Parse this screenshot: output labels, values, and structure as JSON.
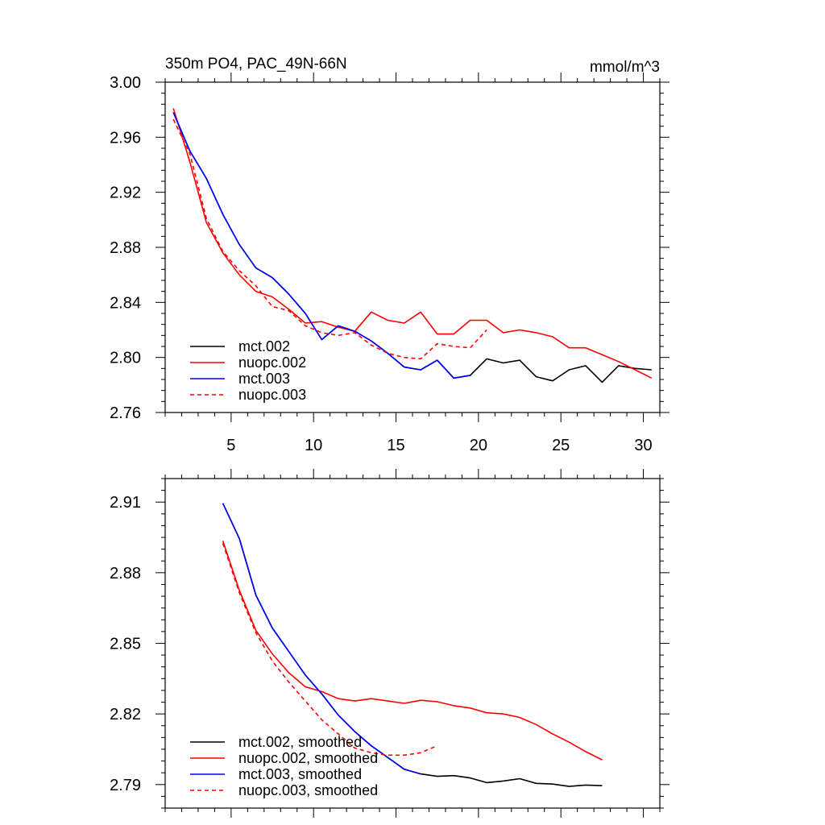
{
  "chart_data": [
    {
      "type": "line",
      "title": "350m PO4, PAC_49N-66N",
      "units": "mmol/m^3",
      "xlabel": "",
      "ylabel": "",
      "xlim": [
        1,
        31
      ],
      "ylim": [
        2.76,
        3.0
      ],
      "xticks": [
        5,
        10,
        15,
        20,
        25,
        30
      ],
      "yticks": [
        2.76,
        2.8,
        2.84,
        2.88,
        2.92,
        2.96,
        3.0
      ],
      "ytick_labels": [
        "2.76",
        "2.80",
        "2.84",
        "2.88",
        "2.92",
        "2.96",
        "3.00"
      ],
      "legend_position": "bottom-left",
      "series": [
        {
          "name": "mct.002",
          "color": "#000000",
          "dash": "solid",
          "x": [
            1.5,
            2.5,
            3.5,
            4.5,
            5.5,
            6.5,
            7.5,
            8.5,
            9.5,
            10.5,
            11.5,
            12.5,
            13.5,
            14.5,
            15.5,
            16.5,
            17.5,
            18.5,
            19.5,
            20.5,
            21.5,
            22.5,
            23.5,
            24.5,
            25.5,
            26.5,
            27.5,
            28.5,
            29.5,
            30.5
          ],
          "y": [
            2.978,
            2.95,
            2.93,
            2.904,
            2.882,
            2.865,
            2.858,
            2.846,
            2.832,
            2.813,
            2.823,
            2.819,
            2.812,
            2.803,
            2.793,
            2.791,
            2.798,
            2.785,
            2.787,
            2.799,
            2.796,
            2.798,
            2.786,
            2.783,
            2.791,
            2.794,
            2.782,
            2.794,
            2.792,
            2.791
          ]
        },
        {
          "name": "nuopc.002",
          "color": "#ff0000",
          "dash": "solid",
          "x": [
            1.5,
            2.5,
            3.5,
            4.5,
            5.5,
            6.5,
            7.5,
            8.5,
            9.5,
            10.5,
            11.5,
            12.5,
            13.5,
            14.5,
            15.5,
            16.5,
            17.5,
            18.5,
            19.5,
            20.5,
            21.5,
            22.5,
            23.5,
            24.5,
            25.5,
            26.5,
            27.5,
            28.5,
            29.5,
            30.5
          ],
          "y": [
            2.981,
            2.942,
            2.898,
            2.876,
            2.86,
            2.848,
            2.844,
            2.835,
            2.825,
            2.826,
            2.822,
            2.819,
            2.833,
            2.827,
            2.825,
            2.833,
            2.817,
            2.817,
            2.827,
            2.827,
            2.818,
            2.82,
            2.818,
            2.815,
            2.807,
            2.807,
            2.802,
            2.797,
            2.791,
            2.785
          ]
        },
        {
          "name": "mct.003",
          "color": "#0000ff",
          "dash": "solid",
          "x": [
            1.5,
            2.5,
            3.5,
            4.5,
            5.5,
            6.5,
            7.5,
            8.5,
            9.5,
            10.5,
            11.5,
            12.5,
            13.5,
            14.5,
            15.5,
            16.5,
            17.5,
            18.5,
            19.5
          ],
          "y": [
            2.978,
            2.95,
            2.93,
            2.904,
            2.882,
            2.865,
            2.858,
            2.846,
            2.832,
            2.813,
            2.823,
            2.819,
            2.812,
            2.803,
            2.793,
            2.791,
            2.798,
            2.785,
            2.787
          ]
        },
        {
          "name": "nuopc.003",
          "color": "#ff0000",
          "dash": "dashed",
          "x": [
            1.5,
            2.5,
            3.5,
            4.5,
            5.5,
            6.5,
            7.5,
            8.5,
            9.5,
            10.5,
            11.5,
            12.5,
            13.5,
            14.5,
            15.5,
            16.5,
            17.5,
            18.5,
            19.5,
            20.5
          ],
          "y": [
            2.973,
            2.948,
            2.901,
            2.877,
            2.863,
            2.852,
            2.837,
            2.834,
            2.823,
            2.818,
            2.816,
            2.818,
            2.809,
            2.803,
            2.8,
            2.799,
            2.81,
            2.808,
            2.807,
            2.82
          ]
        }
      ]
    },
    {
      "type": "line",
      "title": "",
      "xlabel": "",
      "ylabel": "",
      "xlim": [
        1,
        31
      ],
      "ylim": [
        2.78,
        2.92
      ],
      "xticks": [
        5,
        10,
        15,
        20,
        25,
        30
      ],
      "yticks": [
        2.79,
        2.82,
        2.85,
        2.88,
        2.91
      ],
      "ytick_labels": [
        "2.79",
        "2.82",
        "2.85",
        "2.88",
        "2.91"
      ],
      "legend_position": "bottom-left",
      "series": [
        {
          "name": "mct.002, smoothed",
          "color": "#000000",
          "dash": "solid",
          "x": [
            4.5,
            5.5,
            6.5,
            7.5,
            8.5,
            9.5,
            10.5,
            11.5,
            12.5,
            13.5,
            14.5,
            15.5,
            16.5,
            17.5,
            18.5,
            19.5,
            20.5,
            21.5,
            22.5,
            23.5,
            24.5,
            25.5,
            26.5,
            27.5
          ],
          "y": [
            2.9095,
            2.8945,
            2.8705,
            2.8565,
            2.8465,
            2.8365,
            2.8285,
            2.8195,
            2.8125,
            2.8065,
            2.8015,
            2.7965,
            2.7945,
            2.7935,
            2.7938,
            2.7928,
            2.7908,
            2.7915,
            2.7925,
            2.7905,
            2.7902,
            2.7892,
            2.7898,
            2.7895
          ]
        },
        {
          "name": "nuopc.002, smoothed",
          "color": "#ff0000",
          "dash": "solid",
          "x": [
            4.5,
            5.5,
            6.5,
            7.5,
            8.5,
            9.5,
            10.5,
            11.5,
            12.5,
            13.5,
            14.5,
            15.5,
            16.5,
            17.5,
            18.5,
            19.5,
            20.5,
            21.5,
            22.5,
            23.5,
            24.5,
            25.5,
            26.5,
            27.5
          ],
          "y": [
            2.8935,
            2.8725,
            2.8555,
            2.8455,
            2.8375,
            2.8315,
            2.8295,
            2.8265,
            2.8255,
            2.8265,
            2.8255,
            2.8245,
            2.8258,
            2.8252,
            2.8235,
            2.8225,
            2.8205,
            2.82,
            2.8185,
            2.8155,
            2.8115,
            2.808,
            2.804,
            2.8005
          ]
        },
        {
          "name": "mct.003, smoothed",
          "color": "#0000ff",
          "dash": "solid",
          "x": [
            4.5,
            5.5,
            6.5,
            7.5,
            8.5,
            9.5,
            10.5,
            11.5,
            12.5,
            13.5,
            14.5,
            15.5,
            16.5
          ],
          "y": [
            2.9095,
            2.8945,
            2.8705,
            2.8565,
            2.8465,
            2.8365,
            2.8285,
            2.8195,
            2.8125,
            2.8065,
            2.8015,
            2.7965,
            2.7945
          ]
        },
        {
          "name": "nuopc.003, smoothed",
          "color": "#ff0000",
          "dash": "dashed",
          "x": [
            4.5,
            5.5,
            6.5,
            7.5,
            8.5,
            9.5,
            10.5,
            11.5,
            12.5,
            13.5,
            14.5,
            15.5,
            16.5,
            17.5
          ],
          "y": [
            2.8925,
            2.8715,
            2.8545,
            2.8425,
            2.8335,
            2.8255,
            2.8175,
            2.8115,
            2.8055,
            2.8035,
            2.8025,
            2.8025,
            2.8035,
            2.8065
          ]
        }
      ]
    }
  ]
}
